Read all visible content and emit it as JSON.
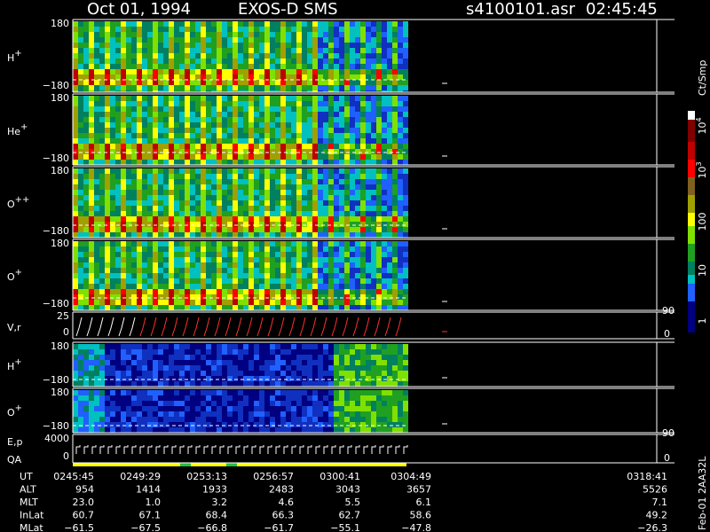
{
  "header": {
    "date": "Oct 01, 1994",
    "instrument": "EXOS-D SMS",
    "file": "s4100101.asr",
    "time": "02:45:45"
  },
  "panels": [
    {
      "label": "H",
      "sup": "+",
      "top": "180",
      "bottom": "−180"
    },
    {
      "label": "He",
      "sup": "+",
      "top": "180",
      "bottom": "−180"
    },
    {
      "label": "O",
      "sup": "++",
      "top": "180",
      "bottom": "−180"
    },
    {
      "label": "O",
      "sup": "+",
      "top": "180",
      "bottom": "−180"
    },
    {
      "label": "V,r",
      "top": "25",
      "bottom": "0",
      "right_top": "90",
      "right_bottom": "0"
    },
    {
      "label": "H",
      "sup": "+",
      "top": "180",
      "bottom": "−180"
    },
    {
      "label": "O",
      "sup": "+",
      "top": "180",
      "bottom": "−180"
    },
    {
      "label": "E,p",
      "label2": "QA",
      "top": "4000",
      "bottom": "0",
      "right_top": "90",
      "right_bottom": "0"
    }
  ],
  "colorbar": {
    "unit": "Ct/Smp",
    "labels": [
      {
        "base": "10",
        "sup": "4"
      },
      {
        "base": "10",
        "sup": "3"
      },
      {
        "base": "100"
      },
      {
        "base": "10"
      },
      {
        "base": "1"
      }
    ]
  },
  "table": {
    "rows": [
      {
        "name": "UT",
        "values": [
          "0245:45",
          "0249:29",
          "0253:13",
          "0256:57",
          "0300:41",
          "0304:49",
          "0318:41"
        ]
      },
      {
        "name": "ALT",
        "values": [
          "954",
          "1414",
          "1933",
          "2483",
          "3043",
          "3657",
          "5526"
        ]
      },
      {
        "name": "MLT",
        "values": [
          "23.0",
          "1.0",
          "3.2",
          "4.6",
          "5.5",
          "6.1",
          "7.1"
        ]
      },
      {
        "name": "InLat",
        "values": [
          "60.7",
          "67.1",
          "68.4",
          "66.3",
          "62.7",
          "58.6",
          "49.2"
        ]
      },
      {
        "name": "MLat",
        "values": [
          "−61.5",
          "−67.5",
          "−66.8",
          "−61.7",
          "−55.1",
          "−47.8",
          "−26.3"
        ]
      }
    ]
  },
  "footer": "Feb-01 2AA32L"
}
